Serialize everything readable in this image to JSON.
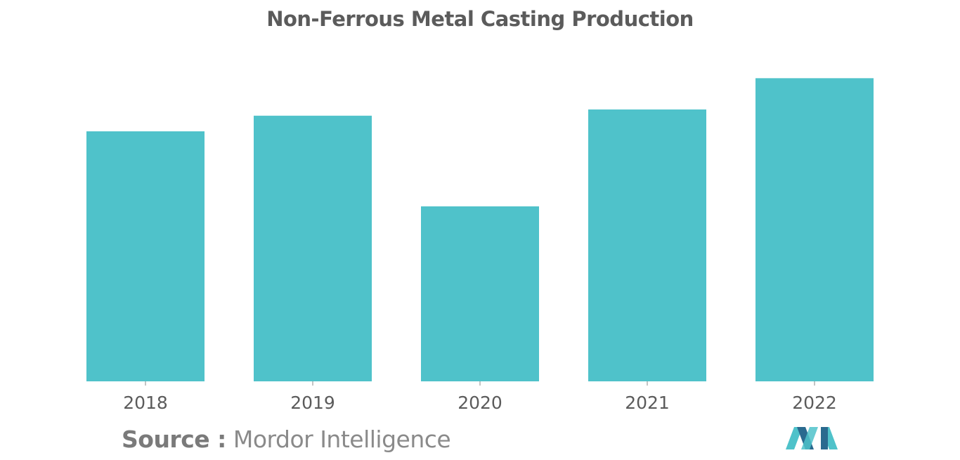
{
  "chart_data": {
    "type": "bar",
    "title": "Non-Ferrous Metal Casting Production",
    "categories": [
      "2018",
      "2019",
      "2020",
      "2021",
      "2022"
    ],
    "values": [
      80,
      85,
      56,
      87,
      97
    ],
    "ylim": [
      0,
      100
    ],
    "grid": false,
    "legend": "none",
    "bar_color": "#4fc2ca"
  },
  "source": {
    "label": "Source :",
    "name": "Mordor Intelligence"
  },
  "colors": {
    "bar": "#4fc2ca",
    "logo_dark": "#2a6a8f",
    "logo_light": "#4fc2ca"
  }
}
